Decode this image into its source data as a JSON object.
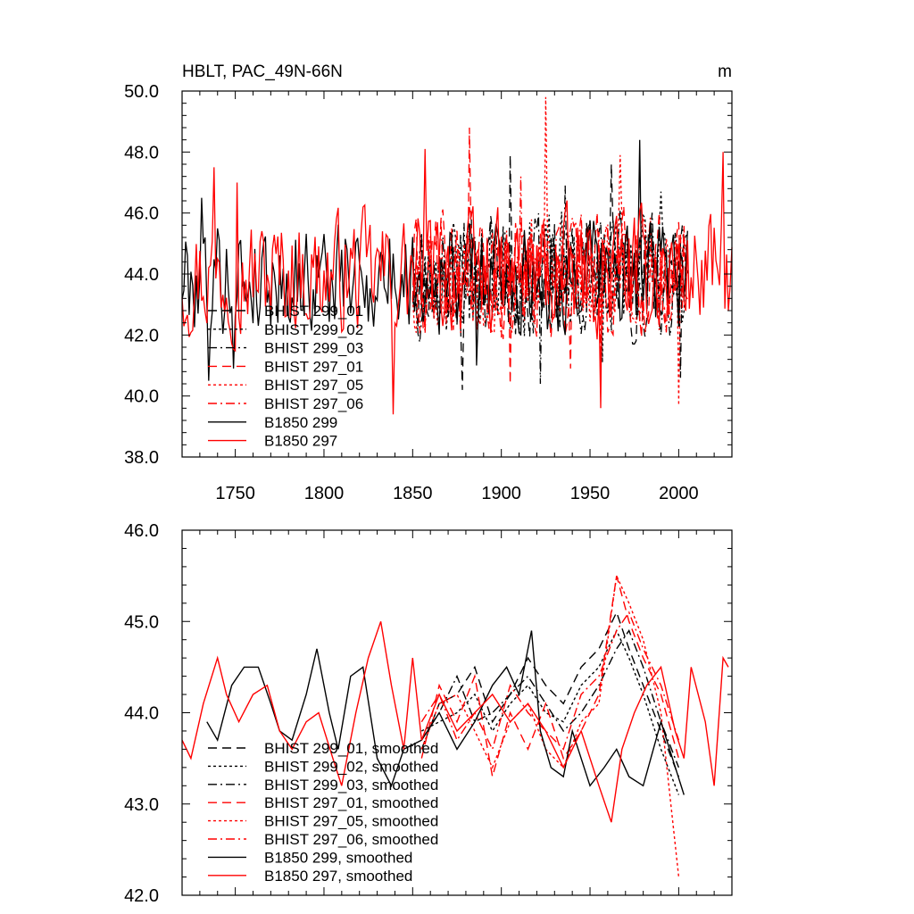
{
  "figure": {
    "title": "HBLT, PAC_49N-66N",
    "units": "m"
  },
  "colors": {
    "black": "#000000",
    "red": "#ff0000"
  },
  "chart_data": [
    {
      "type": "line",
      "panel": "top",
      "title": "HBLT, PAC_49N-66N",
      "units_label": "m",
      "xlabel": "",
      "ylabel": "",
      "xlim": [
        1720,
        2030
      ],
      "ylim": [
        38.0,
        50.0
      ],
      "xticks": [
        1750,
        1800,
        1850,
        1900,
        1950,
        2000
      ],
      "xtick_labels": [
        "1750",
        "1800",
        "1850",
        "1900",
        "1950",
        "2000"
      ],
      "yticks": [
        38.0,
        40.0,
        42.0,
        44.0,
        46.0,
        48.0,
        50.0
      ],
      "ytick_labels": [
        "38.0",
        "40.0",
        "42.0",
        "44.0",
        "46.0",
        "48.0",
        "50.0"
      ],
      "legend_position": "lower-left",
      "series": [
        {
          "name": "BHIST 299_01",
          "color": "#000000",
          "dash": "long-dash",
          "x_start": 1850,
          "x_end": 2005,
          "base": 44.0,
          "amp": 1.7,
          "seed": 11,
          "extremes": [
            [
              1878,
              40.2
            ],
            [
              1905,
              47.9
            ],
            [
              1962,
              47.6
            ],
            [
              2001,
              40.6
            ]
          ]
        },
        {
          "name": "BHIST 299_02",
          "color": "#000000",
          "dash": "dot",
          "x_start": 1850,
          "x_end": 2005,
          "base": 44.0,
          "amp": 1.7,
          "seed": 23,
          "extremes": [
            [
              1957,
              41.1
            ],
            [
              1990,
              46.7
            ]
          ]
        },
        {
          "name": "BHIST 299_03",
          "color": "#000000",
          "dash": "dash-dot",
          "x_start": 1850,
          "x_end": 2005,
          "base": 44.0,
          "amp": 1.7,
          "seed": 37,
          "extremes": [
            [
              1922,
              40.4
            ],
            [
              1936,
              46.9
            ]
          ]
        },
        {
          "name": "BHIST 297_01",
          "color": "#ff0000",
          "dash": "long-dash",
          "x_start": 1850,
          "x_end": 2005,
          "base": 44.0,
          "amp": 1.7,
          "seed": 41,
          "extremes": [
            [
              1882,
              48.8
            ],
            [
              1905,
              40.4
            ],
            [
              1939,
              40.9
            ]
          ]
        },
        {
          "name": "BHIST 297_05",
          "color": "#ff0000",
          "dash": "dot",
          "x_start": 1850,
          "x_end": 2005,
          "base": 44.0,
          "amp": 1.7,
          "seed": 53,
          "extremes": [
            [
              1925,
              49.8
            ],
            [
              1967,
              47.9
            ],
            [
              2000,
              39.7
            ]
          ]
        },
        {
          "name": "BHIST 297_06",
          "color": "#ff0000",
          "dash": "dash-dot",
          "x_start": 1850,
          "x_end": 2005,
          "base": 44.0,
          "amp": 1.7,
          "seed": 67,
          "extremes": [
            [
              1911,
              47.2
            ],
            [
              1956,
              41.1
            ]
          ]
        },
        {
          "name": "B1850 299",
          "color": "#000000",
          "dash": "solid",
          "x_start": 1720,
          "x_end": 2005,
          "base": 43.9,
          "amp": 1.6,
          "seed": 79,
          "extremes": [
            [
              1731,
              46.5
            ],
            [
              1735,
              40.5
            ],
            [
              1749,
              40.9
            ],
            [
              1978,
              48.4
            ],
            [
              1886,
              41.0
            ]
          ]
        },
        {
          "name": "B1850 297",
          "color": "#ff0000",
          "dash": "solid",
          "x_start": 1720,
          "x_end": 2030,
          "base": 44.0,
          "amp": 1.7,
          "seed": 97,
          "extremes": [
            [
              1738,
              47.5
            ],
            [
              1751,
              47.0
            ],
            [
              1839,
              39.4
            ],
            [
              1857,
              48.1
            ],
            [
              1956,
              39.6
            ],
            [
              2025,
              48.0
            ]
          ]
        }
      ]
    },
    {
      "type": "line",
      "panel": "bottom",
      "xlabel": "",
      "ylabel": "",
      "xlim": [
        1720,
        2030
      ],
      "ylim": [
        42.0,
        46.0
      ],
      "xticks": [
        1750,
        1800,
        1850,
        1900,
        1950,
        2000
      ],
      "yticks": [
        42.0,
        43.0,
        44.0,
        45.0,
        46.0
      ],
      "ytick_labels": [
        "42.0",
        "43.0",
        "44.0",
        "45.0",
        "46.0"
      ],
      "legend_position": "lower-left",
      "series": [
        {
          "name": "BHIST 299_01, smoothed",
          "color": "#000000",
          "dash": "long-dash",
          "x": [
            1855,
            1865,
            1875,
            1885,
            1895,
            1905,
            1915,
            1925,
            1935,
            1945,
            1955,
            1965,
            1972,
            1980,
            1990,
            2000
          ],
          "y": [
            43.6,
            44.1,
            44.2,
            44.5,
            43.9,
            44.2,
            44.6,
            44.3,
            44.1,
            44.5,
            44.7,
            45.1,
            44.7,
            44.3,
            43.8,
            43.3
          ]
        },
        {
          "name": "BHIST 299_02, smoothed",
          "color": "#000000",
          "dash": "dot",
          "x": [
            1855,
            1865,
            1875,
            1885,
            1895,
            1905,
            1915,
            1925,
            1935,
            1945,
            1955,
            1965,
            1972,
            1980,
            1990,
            2000
          ],
          "y": [
            43.8,
            43.9,
            44.0,
            44.2,
            43.8,
            44.1,
            44.3,
            44.0,
            43.9,
            44.3,
            44.5,
            44.9,
            44.6,
            44.2,
            43.6,
            43.1
          ]
        },
        {
          "name": "BHIST 299_03, smoothed",
          "color": "#000000",
          "dash": "dash-dot",
          "x": [
            1855,
            1865,
            1875,
            1885,
            1895,
            1905,
            1915,
            1925,
            1935,
            1945,
            1955,
            1965,
            1972,
            1980,
            1990,
            2000
          ],
          "y": [
            43.7,
            44.0,
            44.4,
            43.9,
            44.0,
            44.2,
            44.4,
            44.1,
            43.8,
            44.0,
            44.3,
            44.7,
            44.9,
            44.5,
            43.9,
            43.4
          ]
        },
        {
          "name": "BHIST 297_01, smoothed",
          "color": "#ff0000",
          "dash": "long-dash",
          "x": [
            1855,
            1865,
            1875,
            1885,
            1895,
            1905,
            1915,
            1925,
            1935,
            1945,
            1955,
            1965,
            1972,
            1980,
            1990,
            2000
          ],
          "y": [
            43.5,
            44.3,
            43.9,
            44.4,
            43.3,
            44.0,
            43.6,
            44.1,
            43.5,
            43.8,
            44.2,
            45.5,
            45.0,
            44.6,
            44.2,
            43.5
          ]
        },
        {
          "name": "BHIST 297_05, smoothed",
          "color": "#ff0000",
          "dash": "dot",
          "x": [
            1855,
            1865,
            1875,
            1885,
            1895,
            1905,
            1915,
            1925,
            1935,
            1945,
            1955,
            1965,
            1972,
            1980,
            1990,
            2000
          ],
          "y": [
            43.6,
            44.1,
            44.2,
            43.8,
            43.4,
            43.9,
            44.1,
            43.6,
            43.4,
            43.9,
            44.1,
            45.5,
            45.2,
            44.8,
            44.0,
            42.2
          ]
        },
        {
          "name": "BHIST 297_06, smoothed",
          "color": "#ff0000",
          "dash": "dash-dot",
          "x": [
            1855,
            1865,
            1875,
            1885,
            1895,
            1905,
            1915,
            1925,
            1935,
            1945,
            1955,
            1965,
            1972,
            1980,
            1990,
            2000
          ],
          "y": [
            43.9,
            44.2,
            43.7,
            44.0,
            43.6,
            44.3,
            44.0,
            43.8,
            43.6,
            44.2,
            44.4,
            44.9,
            45.1,
            44.7,
            44.3,
            43.7
          ]
        },
        {
          "name": "B1850 299, smoothed",
          "color": "#000000",
          "dash": "solid",
          "x": [
            1734,
            1740,
            1748,
            1755,
            1763,
            1770,
            1775,
            1782,
            1790,
            1796,
            1803,
            1808,
            1815,
            1822,
            1830,
            1838,
            1845,
            1855,
            1865,
            1875,
            1885,
            1895,
            1903,
            1910,
            1917,
            1922,
            1928,
            1935,
            1940,
            1950,
            1958,
            1965,
            1972,
            1980,
            1990,
            2003
          ],
          "y": [
            43.9,
            43.7,
            44.3,
            44.5,
            44.5,
            44.1,
            43.8,
            43.7,
            44.2,
            44.7,
            44.0,
            43.6,
            44.4,
            44.5,
            43.5,
            43.2,
            43.6,
            43.7,
            44.0,
            43.6,
            43.9,
            44.3,
            44.5,
            44.2,
            44.9,
            43.8,
            43.4,
            43.3,
            43.8,
            43.2,
            43.4,
            43.6,
            43.3,
            43.2,
            43.9,
            43.1
          ]
        },
        {
          "name": "B1850 297, smoothed",
          "color": "#ff0000",
          "dash": "solid",
          "x": [
            1720,
            1725,
            1732,
            1740,
            1745,
            1752,
            1760,
            1768,
            1775,
            1782,
            1790,
            1797,
            1805,
            1810,
            1818,
            1825,
            1832,
            1838,
            1845,
            1850,
            1855,
            1865,
            1875,
            1885,
            1895,
            1905,
            1915,
            1925,
            1935,
            1945,
            1955,
            1962,
            1968,
            1975,
            1982,
            1990,
            1998,
            2003,
            2007,
            2015,
            2020,
            2025,
            2028
          ],
          "y": [
            43.7,
            43.5,
            44.1,
            44.6,
            44.2,
            43.9,
            44.2,
            44.3,
            43.8,
            43.6,
            43.9,
            44.0,
            43.5,
            43.2,
            44.0,
            44.6,
            45.0,
            44.3,
            43.6,
            44.6,
            43.7,
            44.2,
            43.8,
            44.0,
            44.2,
            43.9,
            44.1,
            43.8,
            43.4,
            43.8,
            43.2,
            42.8,
            43.6,
            44.0,
            44.3,
            44.5,
            43.8,
            43.5,
            44.5,
            43.9,
            43.2,
            44.6,
            44.5
          ]
        }
      ]
    }
  ]
}
